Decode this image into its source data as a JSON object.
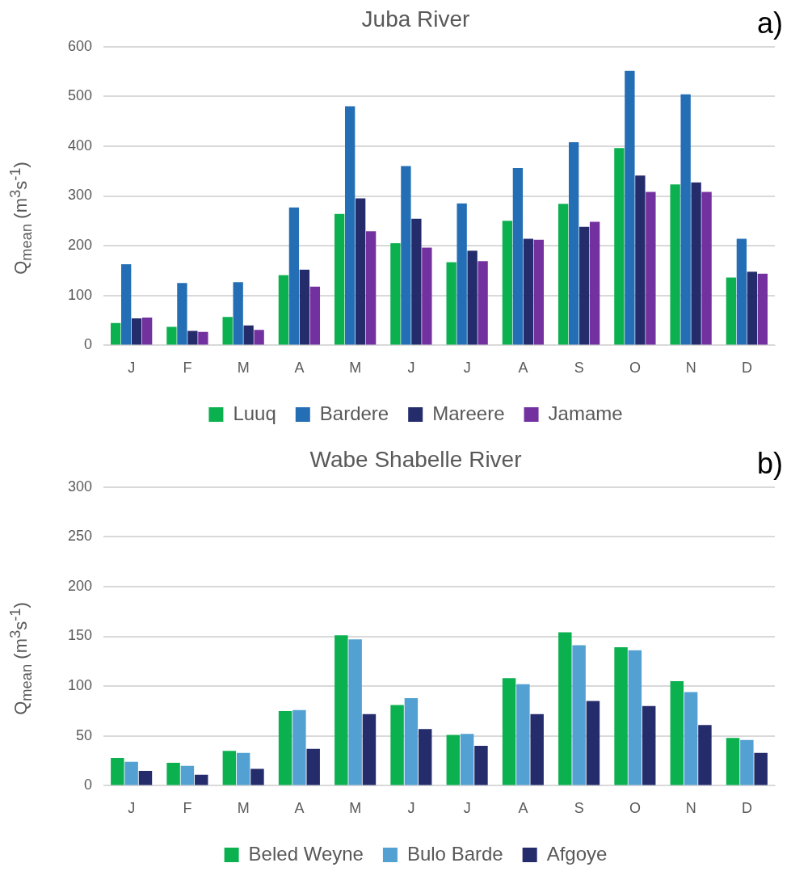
{
  "chart_data": [
    {
      "type": "bar",
      "title": "Juba River",
      "ylabel": "Q$_{mean}$ (m$^{3}$s$^{-1}$)",
      "annotations": [
        "a)"
      ],
      "categories": [
        "J",
        "F",
        "M",
        "A",
        "M",
        "J",
        "J",
        "A",
        "S",
        "O",
        "N",
        "D"
      ],
      "series": [
        {
          "name": "Luuq",
          "color": "#0bb04f",
          "values": [
            45,
            37,
            57,
            141,
            264,
            205,
            167,
            250,
            284,
            396,
            323,
            136
          ]
        },
        {
          "name": "Bardere",
          "color": "#236eb4",
          "values": [
            163,
            125,
            127,
            277,
            480,
            360,
            285,
            356,
            408,
            551,
            504,
            214
          ]
        },
        {
          "name": "Mareere",
          "color": "#242c6c",
          "values": [
            54,
            29,
            40,
            152,
            295,
            254,
            190,
            214,
            238,
            341,
            327,
            148
          ]
        },
        {
          "name": "Jamame",
          "color": "#7331a0",
          "values": [
            56,
            27,
            31,
            118,
            229,
            196,
            169,
            212,
            248,
            308,
            308,
            144
          ]
        }
      ],
      "ylim": [
        0,
        600
      ],
      "yticks": [
        0,
        100,
        200,
        300,
        400,
        500,
        600
      ],
      "grid": "y",
      "legend": "bottom"
    },
    {
      "type": "bar",
      "title": "Wabe Shabelle River",
      "ylabel": "Q$_{mean}$ (m$^{3}$s$^{-1}$)",
      "annotations": [
        "b)"
      ],
      "categories": [
        "J",
        "F",
        "M",
        "A",
        "M",
        "J",
        "J",
        "A",
        "S",
        "O",
        "N",
        "D"
      ],
      "series": [
        {
          "name": "Beled Weyne",
          "color": "#0bb04f",
          "values": [
            28,
            23,
            35,
            75,
            151,
            81,
            51,
            108,
            154,
            139,
            105,
            48
          ]
        },
        {
          "name": "Bulo Barde",
          "color": "#52a1d2",
          "values": [
            24,
            20,
            33,
            76,
            147,
            88,
            52,
            102,
            141,
            136,
            94,
            46
          ]
        },
        {
          "name": "Afgoye",
          "color": "#242c6c",
          "values": [
            15,
            11,
            17,
            37,
            72,
            57,
            40,
            72,
            85,
            80,
            61,
            33
          ]
        }
      ],
      "ylim": [
        0,
        300
      ],
      "yticks": [
        0,
        50,
        100,
        150,
        200,
        250,
        300
      ],
      "grid": "y",
      "legend": "bottom"
    }
  ]
}
